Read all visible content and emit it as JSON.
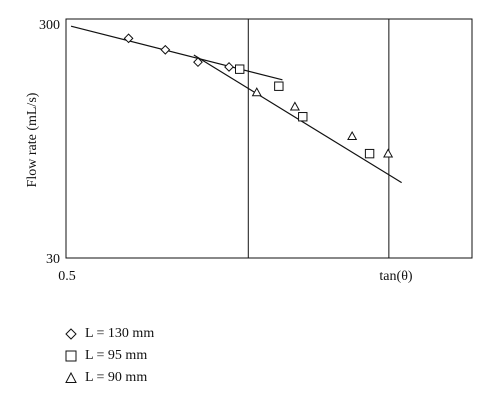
{
  "chart_data": {
    "type": "scatter",
    "title": "",
    "xlabel": "tan(θ)",
    "ylabel": "Flow rate (mL/s)",
    "x_scale": "log",
    "y_scale": "log",
    "xlim": [
      0.5,
      0.95
    ],
    "ylim": [
      30,
      300
    ],
    "x_tick_labels": [
      "0.5"
    ],
    "y_tick_labels": [
      "300",
      "30"
    ],
    "legend_placement": "below",
    "series": [
      {
        "name": "L = 130 mm",
        "marker": "diamond",
        "points": [
          [
            0.552,
            249
          ],
          [
            0.585,
            223
          ],
          [
            0.616,
            198
          ],
          [
            0.647,
            189
          ]
        ]
      },
      {
        "name": "L = 95 mm",
        "marker": "square",
        "points": [
          [
            0.658,
            185
          ],
          [
            0.7,
            157
          ],
          [
            0.727,
            117
          ],
          [
            0.808,
            82
          ]
        ]
      },
      {
        "name": "L = 90 mm",
        "marker": "triangle",
        "points": [
          [
            0.676,
            148
          ],
          [
            0.718,
            129
          ],
          [
            0.786,
            97
          ],
          [
            0.832,
            82
          ]
        ]
      }
    ],
    "fit_lines": [
      {
        "from": [
          0.504,
          280
        ],
        "to": [
          0.704,
          167
        ]
      },
      {
        "from": [
          0.612,
          212
        ],
        "to": [
          0.85,
          62
        ]
      }
    ],
    "vertical_lines_x": [
      0.667,
      0.833
    ]
  }
}
